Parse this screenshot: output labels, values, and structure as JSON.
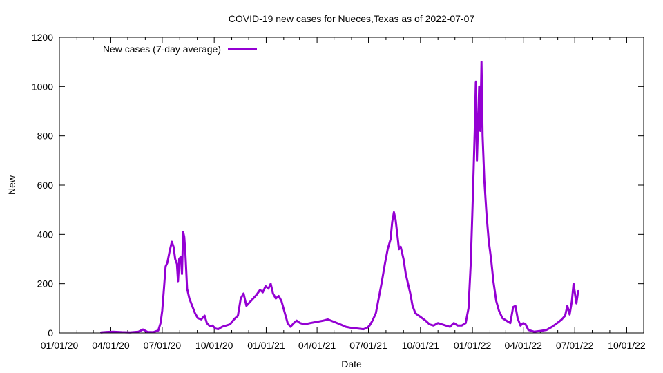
{
  "chart_data": {
    "type": "line",
    "title": "COVID-19 new cases for Nueces,Texas as of 2022-07-07",
    "xlabel": "Date",
    "ylabel": "New",
    "xlim": [
      "2020-01-01",
      "2022-10-31"
    ],
    "ylim": [
      0,
      1200
    ],
    "grid": false,
    "legend_position": "top-left",
    "x_ticks": [
      {
        "date": "2020-01-01",
        "label": "01/01/20"
      },
      {
        "date": "2020-04-01",
        "label": "04/01/20"
      },
      {
        "date": "2020-07-01",
        "label": "07/01/20"
      },
      {
        "date": "2020-10-01",
        "label": "10/01/20"
      },
      {
        "date": "2021-01-01",
        "label": "01/01/21"
      },
      {
        "date": "2021-04-01",
        "label": "04/01/21"
      },
      {
        "date": "2021-07-01",
        "label": "07/01/21"
      },
      {
        "date": "2021-10-01",
        "label": "10/01/21"
      },
      {
        "date": "2022-01-01",
        "label": "01/01/22"
      },
      {
        "date": "2022-04-01",
        "label": "04/01/22"
      },
      {
        "date": "2022-07-01",
        "label": "07/01/22"
      },
      {
        "date": "2022-10-01",
        "label": "10/01/22"
      }
    ],
    "y_ticks": [
      0,
      200,
      400,
      600,
      800,
      1000,
      1200
    ],
    "series": [
      {
        "name": "New cases (7-day average)",
        "color": "#9400d3",
        "points": [
          [
            "2020-03-15",
            2
          ],
          [
            "2020-03-25",
            4
          ],
          [
            "2020-04-05",
            5
          ],
          [
            "2020-04-20",
            3
          ],
          [
            "2020-05-05",
            2
          ],
          [
            "2020-05-20",
            5
          ],
          [
            "2020-05-28",
            14
          ],
          [
            "2020-06-05",
            4
          ],
          [
            "2020-06-15",
            3
          ],
          [
            "2020-06-24",
            10
          ],
          [
            "2020-06-28",
            40
          ],
          [
            "2020-07-01",
            90
          ],
          [
            "2020-07-04",
            180
          ],
          [
            "2020-07-07",
            270
          ],
          [
            "2020-07-10",
            285
          ],
          [
            "2020-07-14",
            330
          ],
          [
            "2020-07-18",
            370
          ],
          [
            "2020-07-21",
            350
          ],
          [
            "2020-07-24",
            300
          ],
          [
            "2020-07-27",
            280
          ],
          [
            "2020-07-29",
            210
          ],
          [
            "2020-07-31",
            300
          ],
          [
            "2020-08-03",
            310
          ],
          [
            "2020-08-05",
            240
          ],
          [
            "2020-08-07",
            410
          ],
          [
            "2020-08-09",
            390
          ],
          [
            "2020-08-11",
            320
          ],
          [
            "2020-08-14",
            180
          ],
          [
            "2020-08-18",
            140
          ],
          [
            "2020-08-23",
            110
          ],
          [
            "2020-08-28",
            80
          ],
          [
            "2020-09-02",
            60
          ],
          [
            "2020-09-08",
            55
          ],
          [
            "2020-09-14",
            70
          ],
          [
            "2020-09-18",
            40
          ],
          [
            "2020-09-23",
            28
          ],
          [
            "2020-09-28",
            30
          ],
          [
            "2020-10-03",
            18
          ],
          [
            "2020-10-08",
            15
          ],
          [
            "2020-10-15",
            25
          ],
          [
            "2020-10-22",
            30
          ],
          [
            "2020-10-29",
            35
          ],
          [
            "2020-11-05",
            55
          ],
          [
            "2020-11-12",
            70
          ],
          [
            "2020-11-17",
            140
          ],
          [
            "2020-11-22",
            160
          ],
          [
            "2020-11-27",
            110
          ],
          [
            "2020-12-03",
            125
          ],
          [
            "2020-12-09",
            140
          ],
          [
            "2020-12-15",
            155
          ],
          [
            "2020-12-21",
            175
          ],
          [
            "2020-12-26",
            165
          ],
          [
            "2020-12-31",
            190
          ],
          [
            "2021-01-05",
            180
          ],
          [
            "2021-01-09",
            200
          ],
          [
            "2021-01-13",
            160
          ],
          [
            "2021-01-18",
            140
          ],
          [
            "2021-01-23",
            150
          ],
          [
            "2021-01-28",
            130
          ],
          [
            "2021-02-03",
            80
          ],
          [
            "2021-02-08",
            40
          ],
          [
            "2021-02-13",
            25
          ],
          [
            "2021-02-19",
            40
          ],
          [
            "2021-02-24",
            50
          ],
          [
            "2021-03-02",
            40
          ],
          [
            "2021-03-10",
            35
          ],
          [
            "2021-03-20",
            40
          ],
          [
            "2021-04-01",
            45
          ],
          [
            "2021-04-12",
            50
          ],
          [
            "2021-04-20",
            55
          ],
          [
            "2021-05-01",
            45
          ],
          [
            "2021-05-12",
            35
          ],
          [
            "2021-05-22",
            25
          ],
          [
            "2021-06-02",
            20
          ],
          [
            "2021-06-12",
            18
          ],
          [
            "2021-06-22",
            15
          ],
          [
            "2021-06-28",
            20
          ],
          [
            "2021-07-03",
            30
          ],
          [
            "2021-07-08",
            50
          ],
          [
            "2021-07-14",
            80
          ],
          [
            "2021-07-19",
            140
          ],
          [
            "2021-07-24",
            200
          ],
          [
            "2021-07-30",
            280
          ],
          [
            "2021-08-04",
            340
          ],
          [
            "2021-08-09",
            380
          ],
          [
            "2021-08-12",
            450
          ],
          [
            "2021-08-15",
            490
          ],
          [
            "2021-08-18",
            460
          ],
          [
            "2021-08-21",
            400
          ],
          [
            "2021-08-24",
            340
          ],
          [
            "2021-08-27",
            350
          ],
          [
            "2021-09-01",
            300
          ],
          [
            "2021-09-05",
            240
          ],
          [
            "2021-09-09",
            200
          ],
          [
            "2021-09-13",
            160
          ],
          [
            "2021-09-17",
            110
          ],
          [
            "2021-09-22",
            80
          ],
          [
            "2021-09-28",
            70
          ],
          [
            "2021-10-04",
            60
          ],
          [
            "2021-10-10",
            50
          ],
          [
            "2021-10-17",
            35
          ],
          [
            "2021-10-24",
            30
          ],
          [
            "2021-11-01",
            40
          ],
          [
            "2021-11-08",
            35
          ],
          [
            "2021-11-15",
            30
          ],
          [
            "2021-11-22",
            25
          ],
          [
            "2021-11-29",
            40
          ],
          [
            "2021-12-06",
            30
          ],
          [
            "2021-12-13",
            30
          ],
          [
            "2021-12-20",
            40
          ],
          [
            "2021-12-25",
            100
          ],
          [
            "2021-12-29",
            280
          ],
          [
            "2022-01-01",
            500
          ],
          [
            "2022-01-03",
            650
          ],
          [
            "2022-01-05",
            820
          ],
          [
            "2022-01-07",
            1020
          ],
          [
            "2022-01-09",
            700
          ],
          [
            "2022-01-11",
            860
          ],
          [
            "2022-01-13",
            1000
          ],
          [
            "2022-01-15",
            820
          ],
          [
            "2022-01-17",
            1100
          ],
          [
            "2022-01-19",
            800
          ],
          [
            "2022-01-22",
            620
          ],
          [
            "2022-01-26",
            480
          ],
          [
            "2022-01-30",
            370
          ],
          [
            "2022-02-03",
            300
          ],
          [
            "2022-02-07",
            210
          ],
          [
            "2022-02-12",
            130
          ],
          [
            "2022-02-17",
            90
          ],
          [
            "2022-02-23",
            60
          ],
          [
            "2022-03-02",
            50
          ],
          [
            "2022-03-09",
            40
          ],
          [
            "2022-03-14",
            105
          ],
          [
            "2022-03-18",
            110
          ],
          [
            "2022-03-22",
            60
          ],
          [
            "2022-03-27",
            30
          ],
          [
            "2022-04-01",
            40
          ],
          [
            "2022-04-05",
            35
          ],
          [
            "2022-04-10",
            12
          ],
          [
            "2022-04-20",
            5
          ],
          [
            "2022-05-01",
            8
          ],
          [
            "2022-05-12",
            12
          ],
          [
            "2022-05-22",
            25
          ],
          [
            "2022-05-31",
            40
          ],
          [
            "2022-06-08",
            55
          ],
          [
            "2022-06-14",
            70
          ],
          [
            "2022-06-18",
            110
          ],
          [
            "2022-06-22",
            75
          ],
          [
            "2022-06-26",
            130
          ],
          [
            "2022-06-29",
            200
          ],
          [
            "2022-07-02",
            150
          ],
          [
            "2022-07-04",
            120
          ],
          [
            "2022-07-07",
            170
          ]
        ]
      }
    ]
  }
}
